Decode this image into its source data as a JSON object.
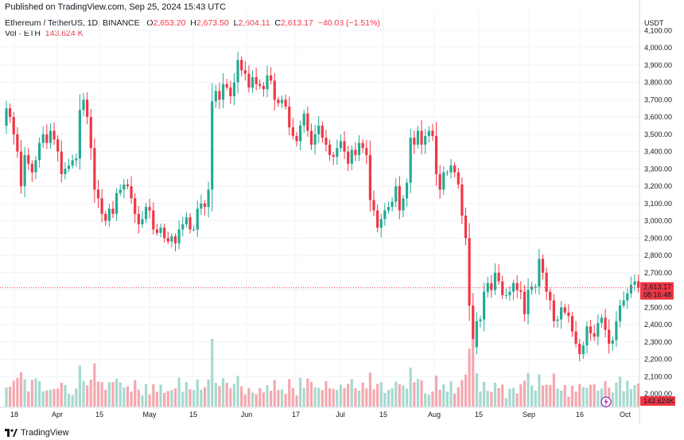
{
  "header": {
    "published": "Published on TradingView.com, Sep 25, 2024 15:43 UTC"
  },
  "legend": {
    "symbol": "Ethereum / TetherUS, 1D, BINANCE",
    "o_label": "O",
    "o_value": "2,653.20",
    "h_label": "H",
    "h_value": "2,673.50",
    "l_label": "L",
    "l_value": "2,604.11",
    "c_label": "C",
    "c_value": "2,613.17",
    "change": "−40.03 (−1.51%)",
    "vol_label": "Vol · ETH",
    "vol_value": "143.624 K"
  },
  "price_axis": {
    "unit": "USDT",
    "last_price": "2,613.17",
    "countdown": "08:16:48",
    "volume_tag": "143.624K"
  },
  "footer": {
    "brand": "TradingView"
  },
  "colors": {
    "up": "#22ab94",
    "down": "#f23645",
    "up_vol": "#a7d9cf",
    "down_vol": "#f5a8ae",
    "grid": "#f0f3fa",
    "price_line": "#f23645"
  },
  "chart_data": {
    "type": "candlestick",
    "x_ticks": [
      "18",
      "Apr",
      "15",
      "May",
      "15",
      "Jun",
      "17",
      "Jul",
      "15",
      "Aug",
      "15",
      "Sep",
      "16",
      "Oct"
    ],
    "y_ticks": [
      "2,000.00",
      "2,100.00",
      "2,200.00",
      "2,300.00",
      "2,400.00",
      "2,500.00",
      "2,600.00",
      "2,700.00",
      "2,800.00",
      "2,900.00",
      "3,000.00",
      "3,100.00",
      "3,200.00",
      "3,300.00",
      "3,400.00",
      "3,500.00",
      "3,600.00",
      "3,700.00",
      "3,800.00",
      "3,900.00",
      "4,000.00",
      "4,100.00"
    ],
    "ylim": [
      2000,
      4100
    ],
    "closes": [
      3650,
      3600,
      3500,
      3400,
      3200,
      3380,
      3330,
      3280,
      3350,
      3450,
      3500,
      3450,
      3520,
      3470,
      3400,
      3270,
      3300,
      3320,
      3350,
      3360,
      3640,
      3700,
      3600,
      3420,
      3180,
      3130,
      3040,
      3000,
      3070,
      3040,
      3160,
      3180,
      3210,
      3200,
      3130,
      3040,
      2980,
      3010,
      3080,
      3060,
      2950,
      2930,
      2960,
      2900,
      2880,
      2910,
      2870,
      2950,
      2980,
      3020,
      2950,
      2950,
      3070,
      3100,
      3080,
      3180,
      3690,
      3750,
      3700,
      3790,
      3770,
      3720,
      3800,
      3930,
      3870,
      3850,
      3770,
      3830,
      3790,
      3780,
      3760,
      3840,
      3810,
      3700,
      3680,
      3700,
      3660,
      3540,
      3490,
      3460,
      3550,
      3620,
      3520,
      3440,
      3500,
      3550,
      3480,
      3440,
      3380,
      3370,
      3420,
      3460,
      3400,
      3330,
      3410,
      3380,
      3450,
      3420,
      3380,
      3120,
      3060,
      2960,
      3010,
      3060,
      3080,
      3110,
      3200,
      3060,
      3130,
      3220,
      3480,
      3440,
      3520,
      3440,
      3490,
      3520,
      3490,
      3270,
      3180,
      3280,
      3280,
      3320,
      3280,
      3210,
      3030,
      2900,
      2510,
      2270,
      2420,
      2430,
      2590,
      2640,
      2600,
      2700,
      2650,
      2570,
      2570,
      2590,
      2640,
      2600,
      2590,
      2460,
      2600,
      2620,
      2620,
      2780,
      2700,
      2590,
      2540,
      2420,
      2430,
      2500,
      2470,
      2450,
      2360,
      2290,
      2230,
      2280,
      2390,
      2350,
      2330,
      2410,
      2440,
      2370,
      2290,
      2310,
      2420,
      2510,
      2540,
      2580,
      2630,
      2650,
      2613.17
    ]
  }
}
